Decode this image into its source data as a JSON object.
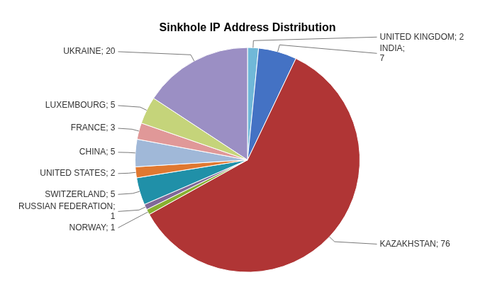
{
  "chart_data": {
    "type": "pie",
    "title": "Sinkhole IP Address Distribution",
    "categories": [
      "UNITED KINGDOM",
      "INDIA",
      "KAZAKHSTAN",
      "NORWAY",
      "RUSSIAN FEDERATION",
      "SWITZERLAND",
      "UNITED STATES",
      "CHINA",
      "FRANCE",
      "LUXEMBOURG",
      "UKRAINE"
    ],
    "values": [
      2,
      7,
      76,
      1,
      1,
      5,
      2,
      5,
      3,
      5,
      20
    ],
    "colors": [
      "#70b8d8",
      "#4472c4",
      "#b03535",
      "#88b030",
      "#806898",
      "#2090a8",
      "#e07830",
      "#a0b8d8",
      "#e09898",
      "#c5d47a",
      "#9b8fc4"
    ],
    "data_labels": true,
    "value_labels": [
      "UNITED KINGDOM; 2",
      "INDIA;\n7",
      "KAZAKHSTAN; 76",
      "NORWAY; 1",
      "RUSSIAN FEDERATION;\n1",
      "SWITZERLAND; 5",
      "UNITED STATES; 2",
      "CHINA; 5",
      "FRANCE; 3",
      "LUXEMBOURG; 5",
      "UKRAINE; 20"
    ]
  }
}
